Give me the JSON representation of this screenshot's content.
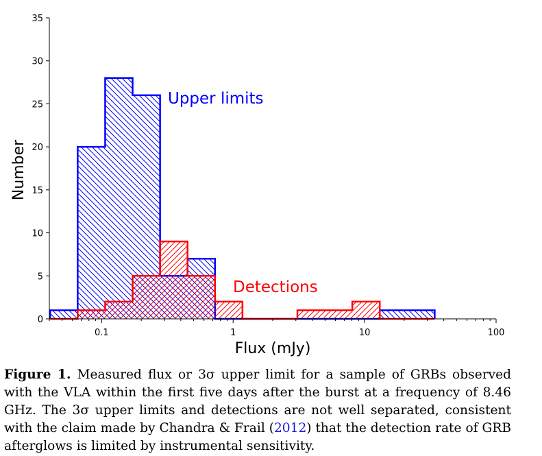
{
  "chart_data": {
    "type": "histogram",
    "xscale": "log",
    "xlim": [
      0.04,
      100
    ],
    "ylim": [
      0,
      35
    ],
    "xlabel": "Flux (mJy)",
    "ylabel": "Number",
    "x_ticks": [
      {
        "value": 0.1,
        "label": "0.1"
      },
      {
        "value": 1,
        "label": "1"
      },
      {
        "value": 10,
        "label": "10"
      },
      {
        "value": 100,
        "label": "100"
      }
    ],
    "y_ticks": [
      0,
      5,
      10,
      15,
      20,
      25,
      30,
      35
    ],
    "bin_edges": [
      0.0406,
      0.0657,
      0.1063,
      0.172,
      0.2782,
      0.45,
      0.7279,
      1.1775,
      1.9047,
      3.081,
      4.9837,
      8.0615,
      13.04,
      21.094,
      34.121
    ],
    "series": [
      {
        "name": "Upper limits",
        "color": "#0000ff",
        "counts": [
          1,
          20,
          28,
          26,
          5,
          7,
          0,
          0,
          0,
          0,
          0,
          0,
          1,
          1
        ]
      },
      {
        "name": "Detections",
        "color": "#ff0000",
        "counts": [
          0,
          1,
          2,
          5,
          9,
          5,
          2,
          0,
          0,
          1,
          1,
          2,
          0,
          0
        ]
      }
    ],
    "annotations": [
      {
        "text": "Upper limits",
        "color": "#0000ff"
      },
      {
        "text": "Detections",
        "color": "#ff0000"
      }
    ]
  },
  "caption": {
    "lead": "Figure 1.",
    "part1": " Measured flux or 3σ upper limit for a sample of GRBs observed with the VLA within the first five days after the burst at a frequency of 8.46 GHz. The 3σ upper limits and detections are not well separated, consistent with the claim made by Chandra & Frail (",
    "citation_year": "2012",
    "part2": ") that the detection rate of GRB afterglows is limited by instrumental sensitivity."
  }
}
